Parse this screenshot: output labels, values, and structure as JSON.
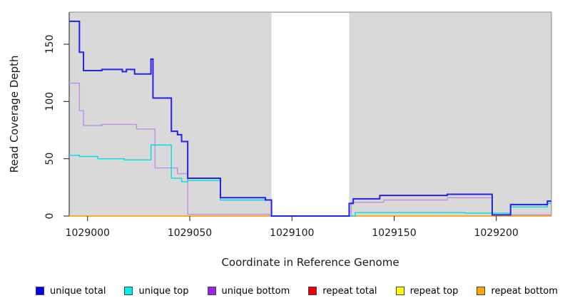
{
  "figure": {
    "bg": "#ffffff"
  },
  "plot": {
    "bg": "#d9d9d9",
    "border_color": "#8a8a8a",
    "axis_color": "#1a1a1a",
    "tick_color": "#1a1a1a"
  },
  "chart_data": {
    "type": "line",
    "step": true,
    "title": "",
    "xlabel": "Coordinate in Reference Genome",
    "ylabel": "Read Coverage Depth",
    "x_range": [
      1028991,
      1029227
    ],
    "y_range": [
      0,
      178
    ],
    "grid": false,
    "legend_position": "bottom",
    "gap_region": {
      "from": 1029090,
      "to": 1029128,
      "color": "#ffffff"
    },
    "x_ticks": [
      {
        "value": 1029000,
        "label": "1029000"
      },
      {
        "value": 1029050,
        "label": "1029050"
      },
      {
        "value": 1029100,
        "label": "1029100"
      },
      {
        "value": 1029150,
        "label": "1029150"
      },
      {
        "value": 1029200,
        "label": "1029200"
      }
    ],
    "y_ticks": [
      {
        "value": 0,
        "label": "0"
      },
      {
        "value": 50,
        "label": "50"
      },
      {
        "value": 100,
        "label": "100"
      },
      {
        "value": 150,
        "label": "150"
      }
    ],
    "series": [
      {
        "name": "repeat total",
        "color": "#ee0000",
        "width": 1.2,
        "points": [
          [
            1028991,
            0
          ]
        ]
      },
      {
        "name": "repeat top",
        "color": "#ffff00",
        "width": 1.2,
        "points": [
          [
            1028991,
            0
          ]
        ]
      },
      {
        "name": "repeat bottom",
        "color": "#ffa500",
        "width": 1.6,
        "points": [
          [
            1028991,
            0
          ]
        ]
      },
      {
        "name": "unique bottom",
        "color": "#be8fe6",
        "width": 1.4,
        "points": [
          [
            1028991,
            116
          ],
          [
            1028996,
            92
          ],
          [
            1028998,
            79
          ],
          [
            1029007,
            80
          ],
          [
            1029024,
            76
          ],
          [
            1029033,
            42
          ],
          [
            1029044,
            37
          ],
          [
            1029049,
            1.5
          ],
          [
            1029089,
            0
          ],
          [
            1029129,
            12
          ],
          [
            1029145,
            14
          ],
          [
            1029176,
            16
          ],
          [
            1029198,
            1
          ]
        ]
      },
      {
        "name": "unique top",
        "color": "#00dce6",
        "width": 1.4,
        "points": [
          [
            1028991,
            53
          ],
          [
            1028996,
            52
          ],
          [
            1029005,
            50
          ],
          [
            1029018,
            49
          ],
          [
            1029031,
            62
          ],
          [
            1029041,
            33
          ],
          [
            1029046,
            30
          ],
          [
            1029049,
            31
          ],
          [
            1029065,
            14
          ],
          [
            1029090,
            0
          ],
          [
            1029131,
            3
          ],
          [
            1029185,
            2.5
          ],
          [
            1029207,
            8
          ],
          [
            1029225,
            11
          ]
        ]
      },
      {
        "name": "unique total",
        "color": "#2222e8",
        "width": 2,
        "points": [
          [
            1028991,
            170
          ],
          [
            1028996,
            143
          ],
          [
            1028998,
            127
          ],
          [
            1029007,
            128
          ],
          [
            1029017,
            126
          ],
          [
            1029019,
            128
          ],
          [
            1029023,
            124
          ],
          [
            1029031,
            137
          ],
          [
            1029032,
            103
          ],
          [
            1029041,
            74
          ],
          [
            1029044,
            71
          ],
          [
            1029046,
            65
          ],
          [
            1029049,
            33
          ],
          [
            1029065,
            16
          ],
          [
            1029087,
            14
          ],
          [
            1029090,
            0
          ],
          [
            1029128,
            11
          ],
          [
            1029130,
            15
          ],
          [
            1029143,
            18
          ],
          [
            1029176,
            19
          ],
          [
            1029198,
            1
          ],
          [
            1029207,
            10
          ],
          [
            1029225,
            13
          ]
        ]
      }
    ]
  },
  "legend": {
    "items": [
      {
        "label": "unique total",
        "color": "#0000ee"
      },
      {
        "label": "unique top",
        "color": "#00eeee"
      },
      {
        "label": "unique bottom",
        "color": "#a020f0"
      },
      {
        "label": "repeat total",
        "color": "#ee0000"
      },
      {
        "label": "repeat top",
        "color": "#ffff00"
      },
      {
        "label": "repeat bottom",
        "color": "#ffa500"
      }
    ]
  }
}
